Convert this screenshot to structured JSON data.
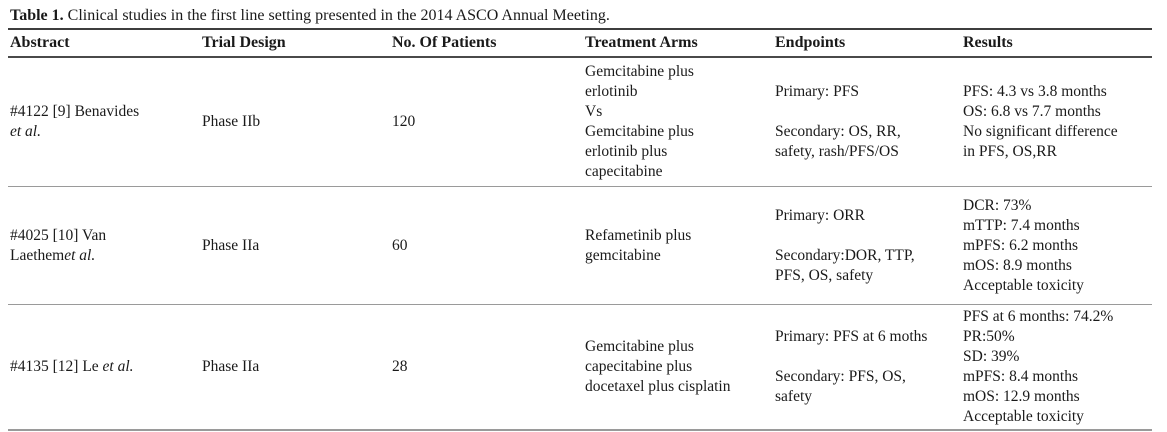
{
  "caption": {
    "label": "Table 1.",
    "text": " Clinical studies in the first line setting presented in the 2014 ASCO Annual Meeting."
  },
  "table": {
    "columns": [
      "Abstract",
      "Trial Design",
      "No. Of Patients",
      "Treatment Arms",
      "Endpoints",
      "Results"
    ],
    "rows": [
      {
        "abstract": "#4122 [9] Benavides\n",
        "abstract_italic": "et al.",
        "trial_design": "Phase IIb",
        "patients": "120",
        "treatment_arms": "Gemcitabine plus\nerlotinib\nVs\nGemcitabine plus\nerlotinib plus\ncapecitabine",
        "endpoints": "Primary: PFS\n\nSecondary: OS, RR,\nsafety, rash/PFS/OS",
        "results": "PFS: 4.3 vs 3.8 months\nOS: 6.8 vs 7.7 months\nNo significant difference\nin PFS, OS,RR"
      },
      {
        "abstract": "#4025 [10] Van\nLaethem",
        "abstract_italic": "et al.",
        "trial_design": "Phase IIa",
        "patients": "60",
        "treatment_arms": "Refametinib plus\ngemcitabine",
        "endpoints": "Primary: ORR\n\nSecondary:DOR, TTP,\nPFS, OS, safety",
        "results": "DCR: 73%\nmTTP: 7.4 months\nmPFS: 6.2 months\nmOS: 8.9 months\nAcceptable toxicity"
      },
      {
        "abstract": "#4135 [12] Le ",
        "abstract_italic": "et al.",
        "trial_design": "Phase IIa",
        "patients": "28",
        "treatment_arms": "Gemcitabine plus\ncapecitabine plus\ndocetaxel plus cisplatin",
        "endpoints": "Primary: PFS at 6 moths\n\nSecondary: PFS, OS,\nsafety",
        "results": "PFS at 6 months: 74.2%\nPR:50%\nSD: 39%\nmPFS: 8.4 months\nmOS: 12.9 months\nAcceptable toxicity"
      }
    ]
  },
  "colors": {
    "text": "#1a1a1a",
    "header_rule": "#3d3d3d",
    "row_rule": "#9a9a9a",
    "background": "#ffffff"
  }
}
